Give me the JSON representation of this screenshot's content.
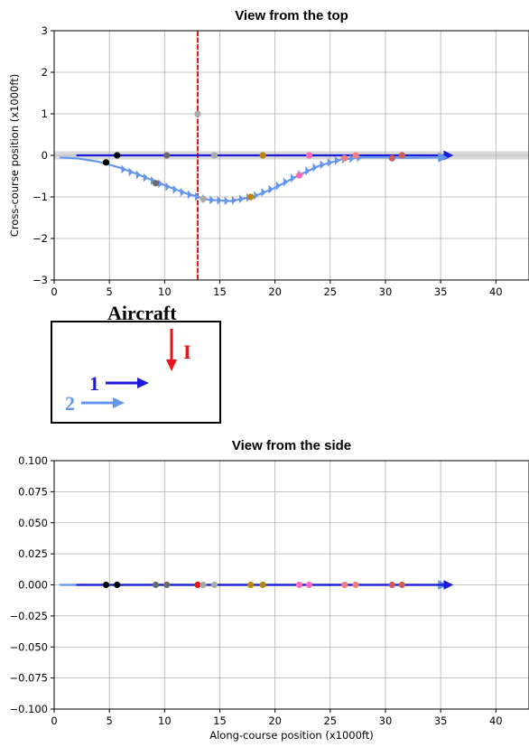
{
  "colors": {
    "aircraft_I": "#e8151b",
    "aircraft_1": "#1a1adb",
    "aircraft_2": "#6495ed",
    "grid": "#b0b0b0",
    "band": "#d9d9d9"
  },
  "legend": {
    "title": "Aircraft",
    "entries": [
      {
        "label": "I",
        "color": "#e8151b",
        "direction": "down"
      },
      {
        "label": "1",
        "color": "#1a1adb",
        "direction": "right"
      },
      {
        "label": "2",
        "color": "#6495ed",
        "direction": "right"
      }
    ]
  },
  "chart_data": [
    {
      "type": "line",
      "title": "View from the top",
      "xlabel": "",
      "ylabel": "Cross-course position (x1000ft)",
      "xlim": [
        0,
        43
      ],
      "ylim": [
        -3,
        3
      ],
      "xticks": [
        "0",
        "5",
        "10",
        "15",
        "20",
        "25",
        "30",
        "35",
        "40"
      ],
      "yticks": [
        "−3",
        "−2",
        "−1",
        "0",
        "1",
        "2",
        "3"
      ],
      "grid": true,
      "shaded_band": [
        -0.1,
        0.1
      ],
      "series": [
        {
          "name": "I",
          "color": "#e8151b",
          "style": "vertical-line",
          "x": [
            13,
            13
          ],
          "y": [
            -3,
            3
          ]
        },
        {
          "name": "1",
          "color": "#1a1adb",
          "style": "line-arrow",
          "x": [
            2,
            35.8
          ],
          "y": [
            0,
            0
          ]
        },
        {
          "name": "2",
          "color": "#6495ed",
          "style": "line-arrow-chevrons",
          "x": [
            0.5,
            2,
            4,
            6,
            8,
            10,
            12,
            14,
            16,
            18,
            20,
            22,
            24,
            26,
            28,
            30,
            32,
            35.3
          ],
          "y": [
            -0.05,
            -0.07,
            -0.15,
            -0.3,
            -0.5,
            -0.72,
            -0.92,
            -1.07,
            -1.1,
            -1.0,
            -0.78,
            -0.5,
            -0.25,
            -0.1,
            -0.05,
            -0.05,
            -0.06,
            -0.05
          ]
        }
      ],
      "markers": [
        {
          "x": 13,
          "y": 1.0,
          "color": "#a9a9a9"
        },
        {
          "x": 5.7,
          "y": 0,
          "color": "#000000"
        },
        {
          "x": 10.2,
          "y": 0,
          "color": "#696969"
        },
        {
          "x": 14.5,
          "y": 0,
          "color": "#a9a9a9"
        },
        {
          "x": 18.9,
          "y": 0,
          "color": "#b8860b"
        },
        {
          "x": 23.1,
          "y": 0,
          "color": "#ff69b4"
        },
        {
          "x": 27.3,
          "y": 0,
          "color": "#f08080"
        },
        {
          "x": 31.5,
          "y": 0,
          "color": "#cd5c5c"
        },
        {
          "x": 4.7,
          "y": -0.17,
          "color": "#000000"
        },
        {
          "x": 9.2,
          "y": -0.67,
          "color": "#696969"
        },
        {
          "x": 13.5,
          "y": -1.05,
          "color": "#a9a9a9"
        },
        {
          "x": 17.8,
          "y": -1.0,
          "color": "#b8860b"
        },
        {
          "x": 22.2,
          "y": -0.48,
          "color": "#ff69b4"
        },
        {
          "x": 26.3,
          "y": -0.07,
          "color": "#f08080"
        },
        {
          "x": 30.6,
          "y": -0.07,
          "color": "#cd5c5c"
        }
      ]
    },
    {
      "type": "scatter",
      "title": "View from the side",
      "xlabel": "Along-course position (x1000ft)",
      "ylabel": "",
      "xlim": [
        0,
        43
      ],
      "ylim": [
        -0.1,
        0.1
      ],
      "xticks": [
        "0",
        "5",
        "10",
        "15",
        "20",
        "25",
        "30",
        "35",
        "40"
      ],
      "yticks": [
        "−0.100",
        "−0.075",
        "−0.050",
        "−0.025",
        "0.000",
        "0.025",
        "0.050",
        "0.075",
        "0.100"
      ],
      "grid": true,
      "series": [
        {
          "name": "2",
          "color": "#6495ed",
          "style": "line-arrow",
          "x": [
            0.5,
            35.3
          ],
          "y": [
            0,
            0
          ]
        },
        {
          "name": "1",
          "color": "#1a1adb",
          "style": "line-arrow",
          "x": [
            2,
            35.8
          ],
          "y": [
            0,
            0
          ]
        }
      ],
      "markers": [
        {
          "x": 4.7,
          "y": 0,
          "color": "#000000"
        },
        {
          "x": 5.7,
          "y": 0,
          "color": "#000000"
        },
        {
          "x": 9.2,
          "y": 0,
          "color": "#696969"
        },
        {
          "x": 10.2,
          "y": 0,
          "color": "#696969"
        },
        {
          "x": 13.0,
          "y": 0,
          "color": "#e8151b"
        },
        {
          "x": 13.5,
          "y": 0,
          "color": "#a9a9a9"
        },
        {
          "x": 14.5,
          "y": 0,
          "color": "#a9a9a9"
        },
        {
          "x": 17.8,
          "y": 0,
          "color": "#b8860b"
        },
        {
          "x": 18.9,
          "y": 0,
          "color": "#b8860b"
        },
        {
          "x": 22.2,
          "y": 0,
          "color": "#ff69b4"
        },
        {
          "x": 23.1,
          "y": 0,
          "color": "#ff69b4"
        },
        {
          "x": 26.3,
          "y": 0,
          "color": "#f08080"
        },
        {
          "x": 27.3,
          "y": 0,
          "color": "#f08080"
        },
        {
          "x": 30.6,
          "y": 0,
          "color": "#cd5c5c"
        },
        {
          "x": 31.5,
          "y": 0,
          "color": "#cd5c5c"
        }
      ]
    }
  ]
}
